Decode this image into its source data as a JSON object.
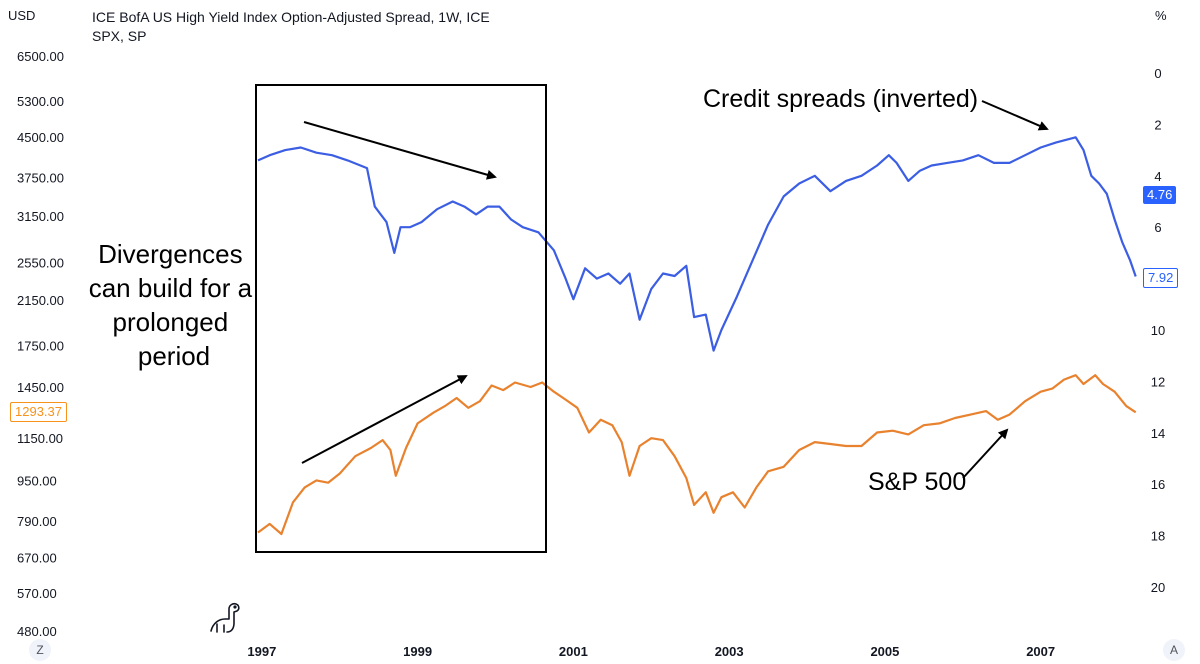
{
  "header": {
    "title": "ICE BofA US High Yield Index Option-Adjusted Spread, 1W, ICE SPX, SP",
    "left_unit": "USD",
    "right_unit": "%"
  },
  "badges": {
    "spread_current": "4.76",
    "spread_last": "7.92",
    "spx_last": "1293.37"
  },
  "corner_buttons": {
    "left": "Z",
    "right": "A"
  },
  "logo_icon": "dinosaur-icon",
  "colors": {
    "spread": "#3b5ee3",
    "spx": "#e8822e",
    "accent_blue": "#2962ff",
    "accent_orange": "#f7931a"
  },
  "annotations": {
    "divergence_lines": [
      "Divergences",
      "can build for a",
      "prolonged",
      "period"
    ],
    "credit_label": "Credit spreads (inverted)",
    "spx_label": "S&P 500"
  },
  "chart_data": {
    "type": "line",
    "title": "ICE BofA US High Yield Index Option-Adjusted Spread, 1W, ICE SPX, SP",
    "x_ticks": [
      "1997",
      "1999",
      "2001",
      "2003",
      "2005",
      "2007"
    ],
    "x_range": [
      1996.95,
      2008.25
    ],
    "left_axis": {
      "unit": "USD",
      "scale": "log",
      "ticks": [
        "6500.00",
        "5300.00",
        "4500.00",
        "3750.00",
        "3150.00",
        "2550.00",
        "2150.00",
        "1750.00",
        "1450.00",
        "1150.00",
        "950.00",
        "790.00",
        "670.00",
        "570.00",
        "480.00"
      ],
      "tick_values": [
        6500,
        5300,
        4500,
        3750,
        3150,
        2550,
        2150,
        1750,
        1450,
        1150,
        950,
        790,
        670,
        570,
        480
      ]
    },
    "right_axis": {
      "unit": "%",
      "inverted": true,
      "ticks": [
        "0",
        "2",
        "4",
        "6",
        "8",
        "10",
        "12",
        "14",
        "16",
        "18",
        "20"
      ],
      "range": [
        0,
        20
      ]
    },
    "series": [
      {
        "name": "Credit spreads (inverted)",
        "axis": "right",
        "points": [
          [
            1996.95,
            3.4
          ],
          [
            1997.1,
            3.2
          ],
          [
            1997.3,
            3.0
          ],
          [
            1997.5,
            2.9
          ],
          [
            1997.7,
            3.1
          ],
          [
            1997.9,
            3.2
          ],
          [
            1998.1,
            3.4
          ],
          [
            1998.35,
            3.7
          ],
          [
            1998.45,
            5.2
          ],
          [
            1998.6,
            5.8
          ],
          [
            1998.7,
            7.0
          ],
          [
            1998.78,
            6.0
          ],
          [
            1998.9,
            6.0
          ],
          [
            1999.05,
            5.8
          ],
          [
            1999.25,
            5.3
          ],
          [
            1999.45,
            5.0
          ],
          [
            1999.6,
            5.2
          ],
          [
            1999.75,
            5.5
          ],
          [
            1999.9,
            5.2
          ],
          [
            2000.05,
            5.2
          ],
          [
            2000.2,
            5.7
          ],
          [
            2000.35,
            6.0
          ],
          [
            2000.55,
            6.2
          ],
          [
            2000.75,
            6.9
          ],
          [
            2000.9,
            8.0
          ],
          [
            2001.0,
            8.8
          ],
          [
            2001.15,
            7.6
          ],
          [
            2001.3,
            8.0
          ],
          [
            2001.45,
            7.8
          ],
          [
            2001.6,
            8.2
          ],
          [
            2001.72,
            7.8
          ],
          [
            2001.85,
            9.6
          ],
          [
            2002.0,
            8.4
          ],
          [
            2002.15,
            7.8
          ],
          [
            2002.3,
            7.9
          ],
          [
            2002.45,
            7.5
          ],
          [
            2002.55,
            9.5
          ],
          [
            2002.7,
            9.4
          ],
          [
            2002.8,
            10.8
          ],
          [
            2002.9,
            10.0
          ],
          [
            2003.1,
            8.7
          ],
          [
            2003.3,
            7.3
          ],
          [
            2003.5,
            5.9
          ],
          [
            2003.7,
            4.8
          ],
          [
            2003.9,
            4.3
          ],
          [
            2004.1,
            4.0
          ],
          [
            2004.3,
            4.6
          ],
          [
            2004.5,
            4.2
          ],
          [
            2004.7,
            4.0
          ],
          [
            2004.9,
            3.6
          ],
          [
            2005.05,
            3.2
          ],
          [
            2005.15,
            3.5
          ],
          [
            2005.3,
            4.2
          ],
          [
            2005.45,
            3.8
          ],
          [
            2005.6,
            3.6
          ],
          [
            2005.8,
            3.5
          ],
          [
            2006.0,
            3.4
          ],
          [
            2006.2,
            3.2
          ],
          [
            2006.4,
            3.5
          ],
          [
            2006.6,
            3.5
          ],
          [
            2006.8,
            3.2
          ],
          [
            2007.0,
            2.9
          ],
          [
            2007.2,
            2.7
          ],
          [
            2007.45,
            2.5
          ],
          [
            2007.55,
            3.0
          ],
          [
            2007.65,
            4.0
          ],
          [
            2007.75,
            4.3
          ],
          [
            2007.85,
            4.7
          ],
          [
            2007.95,
            5.7
          ],
          [
            2008.05,
            6.6
          ],
          [
            2008.15,
            7.3
          ],
          [
            2008.22,
            7.92
          ]
        ]
      },
      {
        "name": "S&P 500",
        "axis": "left",
        "points": [
          [
            1996.95,
            750
          ],
          [
            1997.1,
            780
          ],
          [
            1997.25,
            745
          ],
          [
            1997.4,
            860
          ],
          [
            1997.55,
            920
          ],
          [
            1997.7,
            950
          ],
          [
            1997.85,
            940
          ],
          [
            1998.0,
            980
          ],
          [
            1998.2,
            1060
          ],
          [
            1998.4,
            1100
          ],
          [
            1998.55,
            1140
          ],
          [
            1998.65,
            1090
          ],
          [
            1998.72,
            970
          ],
          [
            1998.85,
            1100
          ],
          [
            1999.0,
            1230
          ],
          [
            1999.2,
            1290
          ],
          [
            1999.35,
            1330
          ],
          [
            1999.5,
            1380
          ],
          [
            1999.65,
            1320
          ],
          [
            1999.8,
            1360
          ],
          [
            1999.95,
            1460
          ],
          [
            2000.1,
            1430
          ],
          [
            2000.25,
            1480
          ],
          [
            2000.45,
            1450
          ],
          [
            2000.6,
            1480
          ],
          [
            2000.75,
            1420
          ],
          [
            2000.9,
            1370
          ],
          [
            2001.05,
            1320
          ],
          [
            2001.2,
            1180
          ],
          [
            2001.35,
            1250
          ],
          [
            2001.5,
            1220
          ],
          [
            2001.62,
            1130
          ],
          [
            2001.72,
            970
          ],
          [
            2001.85,
            1110
          ],
          [
            2002.0,
            1150
          ],
          [
            2002.15,
            1140
          ],
          [
            2002.3,
            1060
          ],
          [
            2002.45,
            960
          ],
          [
            2002.55,
            850
          ],
          [
            2002.7,
            900
          ],
          [
            2002.8,
            820
          ],
          [
            2002.9,
            880
          ],
          [
            2003.05,
            900
          ],
          [
            2003.2,
            840
          ],
          [
            2003.35,
            920
          ],
          [
            2003.5,
            990
          ],
          [
            2003.7,
            1010
          ],
          [
            2003.9,
            1090
          ],
          [
            2004.1,
            1130
          ],
          [
            2004.3,
            1120
          ],
          [
            2004.5,
            1110
          ],
          [
            2004.7,
            1110
          ],
          [
            2004.9,
            1180
          ],
          [
            2005.1,
            1190
          ],
          [
            2005.3,
            1170
          ],
          [
            2005.5,
            1220
          ],
          [
            2005.7,
            1230
          ],
          [
            2005.9,
            1260
          ],
          [
            2006.1,
            1280
          ],
          [
            2006.3,
            1300
          ],
          [
            2006.45,
            1250
          ],
          [
            2006.6,
            1280
          ],
          [
            2006.8,
            1360
          ],
          [
            2007.0,
            1420
          ],
          [
            2007.15,
            1440
          ],
          [
            2007.3,
            1500
          ],
          [
            2007.45,
            1530
          ],
          [
            2007.55,
            1470
          ],
          [
            2007.7,
            1530
          ],
          [
            2007.8,
            1470
          ],
          [
            2007.95,
            1420
          ],
          [
            2008.1,
            1330
          ],
          [
            2008.22,
            1293.37
          ]
        ]
      }
    ],
    "grid": false
  }
}
